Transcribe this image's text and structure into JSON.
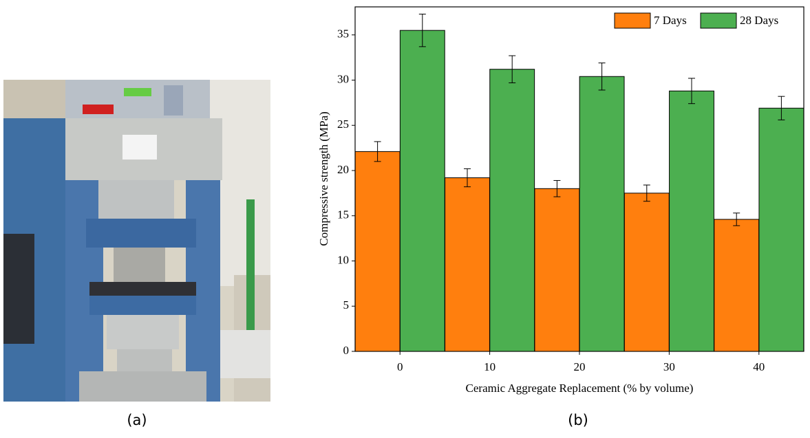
{
  "figure": {
    "captions": [
      "(a)",
      "(b)"
    ]
  },
  "chart_data": {
    "type": "bar",
    "x_label": "Ceramic Aggregate Replacement (% by volume)",
    "y_label": "Compressive strength (MPa)",
    "categories": [
      "0",
      "10",
      "20",
      "30",
      "40"
    ],
    "series": [
      {
        "name": "7 Days",
        "color": "#ff7f0e",
        "values": [
          22.1,
          19.2,
          18.0,
          17.5,
          14.6
        ],
        "errors": [
          1.1,
          1.0,
          0.9,
          0.9,
          0.7
        ]
      },
      {
        "name": "28 Days",
        "color": "#4caf50",
        "values": [
          35.5,
          31.2,
          30.4,
          28.8,
          26.9
        ],
        "errors": [
          1.8,
          1.5,
          1.5,
          1.4,
          1.3
        ]
      }
    ],
    "ylim": [
      0,
      38.1
    ],
    "yticks": [
      0,
      5,
      10,
      15,
      20,
      25,
      30,
      35
    ],
    "legend": "upper right",
    "grid": false
  }
}
